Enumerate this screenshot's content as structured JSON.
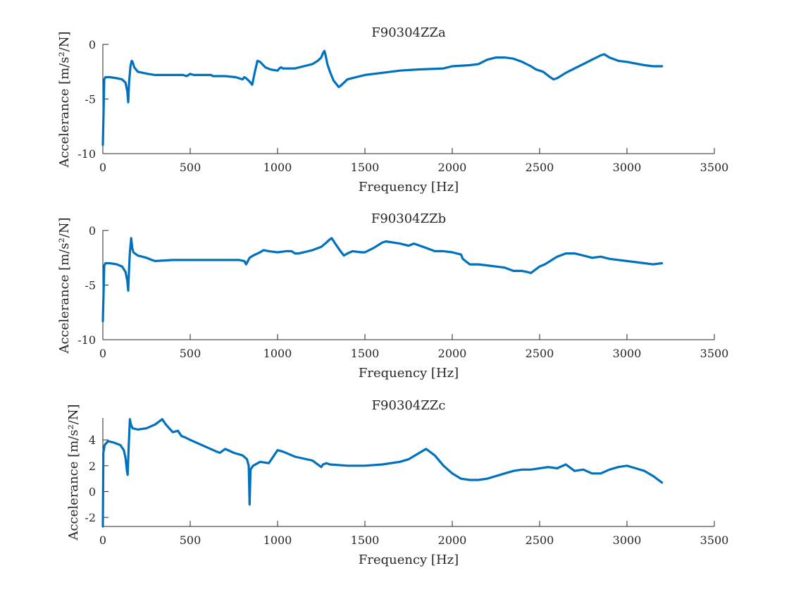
{
  "colors": {
    "series": "#0072BD",
    "axis": "#262626",
    "background": "#ffffff"
  },
  "chart_data": [
    {
      "type": "line",
      "title": "F90304ZZa",
      "xlabel": "Frequency [Hz]",
      "ylabel": "Accelerance [m/s²/N]",
      "xlim": [
        0,
        3500
      ],
      "ylim": [
        -10,
        0
      ],
      "xticks": [
        0,
        500,
        1000,
        1500,
        2000,
        2500,
        3000,
        3500
      ],
      "yticks": [
        -10,
        -5,
        0
      ],
      "grid": false,
      "series": [
        {
          "x": [
            0,
            8,
            15,
            40,
            80,
            110,
            130,
            140,
            145,
            150,
            158,
            165,
            170,
            180,
            200,
            260,
            300,
            400,
            460,
            480,
            500,
            520,
            560,
            620,
            630,
            700,
            760,
            800,
            810,
            820,
            840,
            855,
            870,
            885,
            900,
            930,
            960,
            1000,
            1010,
            1020,
            1030,
            1100,
            1150,
            1200,
            1230,
            1250,
            1260,
            1268,
            1275,
            1285,
            1300,
            1320,
            1350,
            1360,
            1400,
            1500,
            1600,
            1700,
            1800,
            1950,
            2000,
            2100,
            2150,
            2200,
            2250,
            2300,
            2350,
            2400,
            2450,
            2480,
            2500,
            2520,
            2560,
            2580,
            2600,
            2650,
            2700,
            2750,
            2800,
            2850,
            2870,
            2900,
            2950,
            3000,
            3100,
            3150,
            3200
          ],
          "y": [
            -9.2,
            -3.2,
            -3.0,
            -3.0,
            -3.1,
            -3.2,
            -3.5,
            -4.3,
            -5.3,
            -3.5,
            -2.0,
            -1.5,
            -1.6,
            -2.1,
            -2.5,
            -2.7,
            -2.8,
            -2.8,
            -2.8,
            -2.9,
            -2.7,
            -2.8,
            -2.8,
            -2.8,
            -2.9,
            -2.9,
            -3.0,
            -3.2,
            -3.0,
            -3.1,
            -3.4,
            -3.7,
            -2.5,
            -1.5,
            -1.6,
            -2.1,
            -2.3,
            -2.4,
            -2.2,
            -2.1,
            -2.2,
            -2.2,
            -2.0,
            -1.8,
            -1.5,
            -1.2,
            -0.8,
            -0.6,
            -1.0,
            -1.8,
            -2.5,
            -3.3,
            -3.9,
            -3.8,
            -3.2,
            -2.8,
            -2.6,
            -2.4,
            -2.3,
            -2.2,
            -2.0,
            -1.9,
            -1.8,
            -1.4,
            -1.2,
            -1.2,
            -1.3,
            -1.6,
            -2.0,
            -2.3,
            -2.4,
            -2.5,
            -3.0,
            -3.2,
            -3.1,
            -2.6,
            -2.2,
            -1.8,
            -1.4,
            -1.0,
            -0.9,
            -1.2,
            -1.5,
            -1.6,
            -1.9,
            -2.0,
            -2.0
          ]
        }
      ]
    },
    {
      "type": "line",
      "title": "F90304ZZb",
      "xlabel": "Frequency [Hz]",
      "ylabel": "Accelerance [m/s²/N]",
      "xlim": [
        0,
        3500
      ],
      "ylim": [
        -10,
        0
      ],
      "xticks": [
        0,
        500,
        1000,
        1500,
        2000,
        2500,
        3000,
        3500
      ],
      "yticks": [
        -10,
        -5,
        0
      ],
      "grid": false,
      "series": [
        {
          "x": [
            0,
            8,
            15,
            40,
            80,
            110,
            130,
            140,
            145,
            150,
            155,
            162,
            168,
            175,
            200,
            250,
            280,
            300,
            400,
            500,
            600,
            700,
            780,
            810,
            820,
            840,
            860,
            900,
            920,
            950,
            1000,
            1050,
            1080,
            1100,
            1120,
            1150,
            1200,
            1250,
            1280,
            1300,
            1310,
            1330,
            1360,
            1380,
            1400,
            1430,
            1480,
            1500,
            1550,
            1600,
            1620,
            1700,
            1750,
            1780,
            1850,
            1900,
            1950,
            2000,
            2050,
            2060,
            2100,
            2150,
            2200,
            2300,
            2350,
            2400,
            2430,
            2450,
            2500,
            2530,
            2600,
            2650,
            2700,
            2750,
            2800,
            2850,
            2900,
            3000,
            3100,
            3150,
            3200
          ],
          "y": [
            -8.3,
            -3.2,
            -3.0,
            -3.0,
            -3.1,
            -3.3,
            -3.8,
            -4.6,
            -5.5,
            -3.5,
            -2.0,
            -0.7,
            -1.6,
            -2.0,
            -2.3,
            -2.5,
            -2.7,
            -2.8,
            -2.7,
            -2.7,
            -2.7,
            -2.7,
            -2.7,
            -2.8,
            -3.1,
            -2.5,
            -2.3,
            -2.0,
            -1.8,
            -1.9,
            -2.0,
            -1.9,
            -1.9,
            -2.1,
            -2.1,
            -2.0,
            -1.8,
            -1.5,
            -1.1,
            -0.8,
            -0.7,
            -1.2,
            -1.9,
            -2.3,
            -2.1,
            -1.9,
            -2.0,
            -2.0,
            -1.6,
            -1.1,
            -1.0,
            -1.2,
            -1.4,
            -1.2,
            -1.6,
            -1.9,
            -1.9,
            -2.0,
            -2.2,
            -2.6,
            -3.1,
            -3.1,
            -3.2,
            -3.4,
            -3.7,
            -3.7,
            -3.8,
            -3.9,
            -3.3,
            -3.1,
            -2.4,
            -2.1,
            -2.1,
            -2.3,
            -2.5,
            -2.4,
            -2.6,
            -2.8,
            -3.0,
            -3.1,
            -3.0
          ]
        }
      ]
    },
    {
      "type": "line",
      "title": "F90304ZZc",
      "xlabel": "Frequency [Hz]",
      "ylabel": "Accelerance [m/s²/N]",
      "xlim": [
        0,
        3500
      ],
      "ylim": [
        -2.7,
        5.7
      ],
      "xticks": [
        0,
        500,
        1000,
        1500,
        2000,
        2500,
        3000,
        3500
      ],
      "yticks": [
        -2,
        0,
        2,
        4
      ],
      "grid": false,
      "series": [
        {
          "x": [
            0,
            3,
            10,
            30,
            60,
            100,
            120,
            130,
            138,
            142,
            148,
            155,
            160,
            170,
            200,
            250,
            300,
            340,
            360,
            380,
            400,
            430,
            450,
            470,
            500,
            550,
            600,
            650,
            670,
            700,
            750,
            800,
            825,
            835,
            840,
            845,
            860,
            900,
            950,
            980,
            1000,
            1030,
            1100,
            1200,
            1250,
            1260,
            1280,
            1300,
            1400,
            1500,
            1600,
            1700,
            1750,
            1800,
            1850,
            1900,
            1950,
            2000,
            2050,
            2100,
            2150,
            2200,
            2250,
            2300,
            2350,
            2400,
            2450,
            2500,
            2550,
            2600,
            2650,
            2700,
            2750,
            2800,
            2850,
            2900,
            2950,
            3000,
            3050,
            3100,
            3150,
            3200
          ],
          "y": [
            -2.7,
            3.0,
            3.6,
            3.9,
            3.8,
            3.6,
            3.2,
            2.6,
            1.6,
            1.3,
            3.5,
            5.6,
            5.2,
            4.9,
            4.8,
            4.9,
            5.2,
            5.6,
            5.2,
            4.9,
            4.6,
            4.7,
            4.3,
            4.2,
            4.0,
            3.7,
            3.4,
            3.1,
            3.0,
            3.3,
            3.0,
            2.8,
            2.5,
            2.0,
            -1.0,
            1.7,
            2.0,
            2.3,
            2.2,
            2.8,
            3.2,
            3.1,
            2.7,
            2.4,
            1.9,
            2.1,
            2.2,
            2.1,
            2.0,
            2.0,
            2.1,
            2.3,
            2.5,
            2.9,
            3.3,
            2.8,
            2.0,
            1.4,
            1.0,
            0.9,
            0.9,
            1.0,
            1.2,
            1.4,
            1.6,
            1.7,
            1.7,
            1.8,
            1.9,
            1.8,
            2.1,
            1.6,
            1.7,
            1.4,
            1.4,
            1.7,
            1.9,
            2.0,
            1.8,
            1.6,
            1.2,
            0.7
          ]
        }
      ]
    }
  ]
}
